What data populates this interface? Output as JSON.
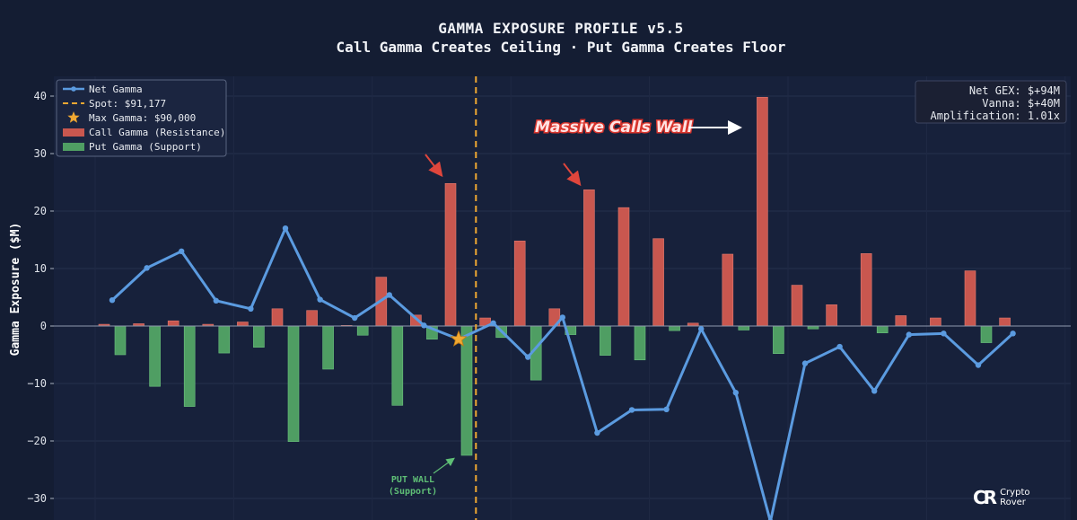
{
  "chart_data": {
    "type": "bar",
    "title": "GAMMA EXPOSURE PROFILE v5.5",
    "subtitle": "Call Gamma Creates Ceiling · Put Gamma Creates Floor",
    "ylabel": "Gamma Exposure ($M)",
    "xlabel": "",
    "ylim": [
      -33,
      43
    ],
    "yticks": [
      40,
      30,
      20,
      10,
      0,
      -10,
      -20,
      -30
    ],
    "grid": true,
    "legend_placement": "top-left",
    "legend": [
      {
        "label": "Net Gamma",
        "kind": "line",
        "color": "#5b9be0"
      },
      {
        "label": "Spot: $91,177",
        "kind": "dashed",
        "color": "#f0a832"
      },
      {
        "label": "Max Gamma: $90,000",
        "kind": "star",
        "color": "#f0a832"
      },
      {
        "label": "Call Gamma (Resistance)",
        "kind": "bar",
        "color": "#c9574f"
      },
      {
        "label": "Put Gamma (Support)",
        "kind": "bar",
        "color": "#4f9e63"
      }
    ],
    "spot_index": 11,
    "max_gamma_index": 10,
    "series": [
      {
        "name": "Call Gamma (Resistance)",
        "color": "#c9574f",
        "values": [
          0.3,
          0.4,
          0.9,
          0.3,
          0.7,
          3.0,
          2.7,
          0.1,
          8.5,
          1.9,
          24.8,
          1.4,
          14.8,
          3.0,
          23.7,
          20.6,
          15.2,
          0.5,
          12.5,
          39.8,
          7.1,
          3.7,
          12.6,
          1.8,
          1.4,
          9.6,
          1.4
        ]
      },
      {
        "name": "Put Gamma (Support)",
        "color": "#4f9e63",
        "values": [
          -5.0,
          -10.5,
          -14.0,
          -4.7,
          -3.7,
          -20.1,
          -7.5,
          -1.6,
          -13.8,
          -2.3,
          -22.5,
          -2.0,
          -9.4,
          -1.5,
          -5.1,
          -5.9,
          -0.8,
          0.0,
          -0.7,
          -4.8,
          -0.5,
          0.0,
          -1.2,
          0.0,
          0.0,
          -2.9,
          0.0
        ]
      },
      {
        "name": "Net Gamma",
        "color": "#5b9be0",
        "values": [
          4.5,
          10.1,
          13.0,
          4.4,
          3.0,
          17.0,
          4.6,
          1.4,
          5.4,
          0.1,
          -2.3,
          0.5,
          -5.4,
          1.5,
          -18.6,
          -14.6,
          -14.5,
          -0.5,
          -11.6,
          -34.0,
          -6.5,
          -3.6,
          -11.3,
          -1.5,
          -1.3,
          -6.8,
          -1.3
        ]
      }
    ],
    "annotations": {
      "calls_wall": "Massive Calls Wall",
      "put_wall_line1": "PUT WALL",
      "put_wall_line2": "(Support)"
    },
    "info_box": [
      "Net GEX: $+94M",
      "Vanna: $+40M",
      "Amplification: 1.01x"
    ]
  },
  "branding": {
    "logo_mark": "CR",
    "logo_line1": "Crypto",
    "logo_line2": "Rover"
  }
}
